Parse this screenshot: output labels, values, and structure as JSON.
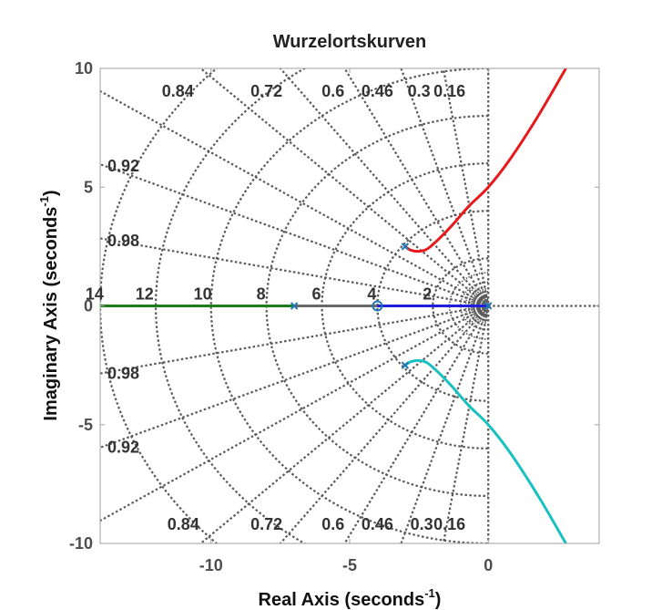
{
  "chart_data": {
    "type": "line",
    "title": "Wurzelortskurven",
    "xlabel": {
      "text": "Real Axis (seconds",
      "sup": "-1",
      "close": ")"
    },
    "ylabel": {
      "text": "Imaginary Axis (seconds",
      "sup": "-1",
      "close": ")"
    },
    "xlim": [
      -14,
      4
    ],
    "ylim": [
      -10,
      10
    ],
    "xticks": [
      {
        "value": -10,
        "label": "-10"
      },
      {
        "value": -5,
        "label": "-5"
      },
      {
        "value": 0,
        "label": "0"
      }
    ],
    "yticks": [
      {
        "value": -10,
        "label": "-10"
      },
      {
        "value": -5,
        "label": "-5"
      },
      {
        "value": 0,
        "label": "0"
      },
      {
        "value": 5,
        "label": "5"
      },
      {
        "value": 10,
        "label": "10"
      }
    ],
    "grid": true,
    "damping_ratios": [
      0.16,
      0.3,
      0.46,
      0.6,
      0.72,
      0.84,
      0.92,
      0.98
    ],
    "damping_labels_top": [
      "0.84",
      "0.72",
      "0.6",
      "0.46",
      "0.3",
      "0.16"
    ],
    "damping_labels_left_top": [
      "0.92",
      "0.98"
    ],
    "damping_labels_bottom": [
      "0.84",
      "0.72",
      "0.6",
      "0.46",
      "0.3",
      "0.16"
    ],
    "damping_labels_left_bottom": [
      "0.98",
      "0.92"
    ],
    "natural_frequencies": [
      2,
      4,
      6,
      8,
      10,
      12,
      14
    ],
    "natural_frequency_labels": [
      "2",
      "4",
      "6",
      "8",
      "10",
      "12",
      "14"
    ],
    "poles": [
      {
        "x": -3,
        "y": 2.5
      },
      {
        "x": -3,
        "y": -2.5
      },
      {
        "x": -7,
        "y": 0
      },
      {
        "x": 0,
        "y": 0
      }
    ],
    "zeros": [
      {
        "x": -4,
        "y": 0
      }
    ],
    "colors": {
      "red": "#e6191c",
      "cyan": "#19c0c0",
      "blue": "#1f1fe0",
      "green": "#1b7f1b",
      "gray": "#696969",
      "grid": "#5a5a5a",
      "marker": "#1f77b4"
    },
    "series": [
      {
        "color": "red",
        "points": [
          [
            -3,
            2.5
          ],
          [
            -2.8,
            2.35
          ],
          [
            -2.5,
            2.3
          ],
          [
            -2.2,
            2.4
          ],
          [
            -1.8,
            2.8
          ],
          [
            -1.3,
            3.4
          ],
          [
            -0.7,
            4.2
          ],
          [
            0,
            5
          ],
          [
            0.8,
            6.2
          ],
          [
            1.8,
            8.0
          ],
          [
            2.8,
            10
          ]
        ]
      },
      {
        "color": "cyan",
        "points": [
          [
            -3,
            -2.5
          ],
          [
            -2.8,
            -2.35
          ],
          [
            -2.5,
            -2.3
          ],
          [
            -2.2,
            -2.4
          ],
          [
            -1.8,
            -2.8
          ],
          [
            -1.3,
            -3.4
          ],
          [
            -0.7,
            -4.2
          ],
          [
            0,
            -5
          ],
          [
            0.8,
            -6.2
          ],
          [
            1.8,
            -8.0
          ],
          [
            2.8,
            -10
          ]
        ]
      },
      {
        "color": "blue",
        "points": [
          [
            0,
            0
          ],
          [
            -4,
            0
          ]
        ]
      },
      {
        "color": "green",
        "points": [
          [
            -7,
            0
          ],
          [
            -14,
            0
          ]
        ]
      }
    ]
  }
}
